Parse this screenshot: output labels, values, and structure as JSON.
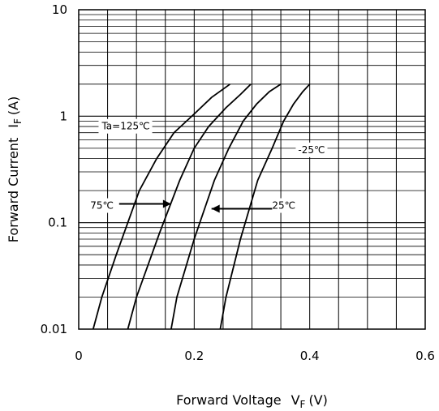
{
  "chart_data": {
    "type": "line",
    "title": "",
    "xlabel": "Forward Voltage",
    "xlabel_symbol": "V",
    "xlabel_sub": "F",
    "xlabel_unit": "(V)",
    "ylabel": "Forward Current",
    "ylabel_symbol": "I",
    "ylabel_sub": "F",
    "ylabel_unit": "(A)",
    "xlim": [
      0,
      0.6
    ],
    "ylim": [
      0.01,
      10
    ],
    "yscale": "log",
    "grid": true,
    "x_ticks": [
      "0",
      "0.2",
      "0.4",
      "0.6"
    ],
    "y_ticks": [
      "0.01",
      "0.1",
      "1",
      "10"
    ],
    "series": [
      {
        "name": "Ta=125℃",
        "x": [
          0.025,
          0.04,
          0.065,
          0.105,
          0.135,
          0.165,
          0.2,
          0.23,
          0.262
        ],
        "y": [
          0.01,
          0.02,
          0.05,
          0.2,
          0.4,
          0.7,
          1.05,
          1.5,
          2.0
        ]
      },
      {
        "name": "75℃",
        "x": [
          0.085,
          0.1,
          0.14,
          0.175,
          0.2,
          0.225,
          0.255,
          0.28,
          0.298
        ],
        "y": [
          0.01,
          0.02,
          0.08,
          0.25,
          0.5,
          0.8,
          1.2,
          1.6,
          2.0
        ]
      },
      {
        "name": "25℃",
        "x": [
          0.16,
          0.17,
          0.2,
          0.235,
          0.26,
          0.285,
          0.308,
          0.33,
          0.35
        ],
        "y": [
          0.01,
          0.02,
          0.07,
          0.25,
          0.5,
          0.9,
          1.3,
          1.7,
          2.0
        ]
      },
      {
        "name": "-25℃",
        "x": [
          0.245,
          0.255,
          0.28,
          0.31,
          0.335,
          0.355,
          0.372,
          0.388,
          0.4
        ],
        "y": [
          0.01,
          0.02,
          0.07,
          0.25,
          0.5,
          0.9,
          1.3,
          1.7,
          2.0
        ]
      }
    ],
    "annotations": [
      {
        "label": "Ta=125℃",
        "x": 0.04,
        "y": 0.75
      },
      {
        "label": "75℃",
        "x": 0.02,
        "y": 0.135
      },
      {
        "label": "25℃",
        "x": 0.335,
        "y": 0.135
      },
      {
        "label": "-25℃",
        "x": 0.38,
        "y": 0.45
      }
    ],
    "arrows": [
      {
        "from": [
          0.07,
          0.15
        ],
        "to": [
          0.16,
          0.15
        ]
      },
      {
        "from": [
          0.335,
          0.135
        ],
        "to": [
          0.23,
          0.135
        ]
      }
    ]
  }
}
